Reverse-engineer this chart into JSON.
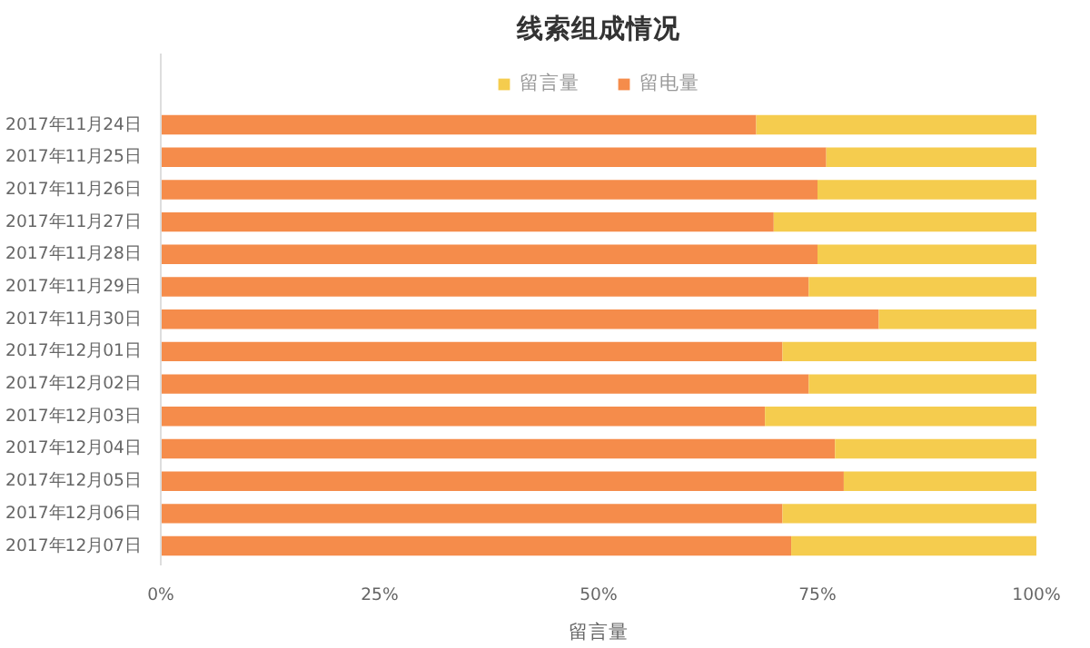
{
  "chart_data": {
    "type": "bar",
    "orientation": "horizontal",
    "stacked": true,
    "title": "线索组成情况",
    "xlabel": "留言量",
    "categories": [
      "2017年11月24日",
      "2017年11月25日",
      "2017年11月26日",
      "2017年11月27日",
      "2017年11月28日",
      "2017年11月29日",
      "2017年11月30日",
      "2017年12月01日",
      "2017年12月02日",
      "2017年12月03日",
      "2017年12月04日",
      "2017年12月05日",
      "2017年12月06日",
      "2017年12月07日"
    ],
    "series": [
      {
        "name": "留电量",
        "color": "#f58c4b",
        "values": [
          68,
          76,
          75,
          70,
          75,
          74,
          82,
          71,
          74,
          69,
          77,
          78,
          71,
          72
        ]
      },
      {
        "name": "留言量",
        "color": "#f5cc4e",
        "values": [
          32,
          24,
          25,
          30,
          25,
          26,
          18,
          29,
          26,
          31,
          23,
          22,
          29,
          28
        ]
      }
    ],
    "xlim": [
      0,
      100
    ],
    "xticks": [
      {
        "value": 0,
        "label": "0%"
      },
      {
        "value": 25,
        "label": "25%"
      },
      {
        "value": 50,
        "label": "50%"
      },
      {
        "value": 75,
        "label": "75%"
      },
      {
        "value": 100,
        "label": "100%"
      }
    ],
    "grid": false,
    "legend": "top"
  }
}
